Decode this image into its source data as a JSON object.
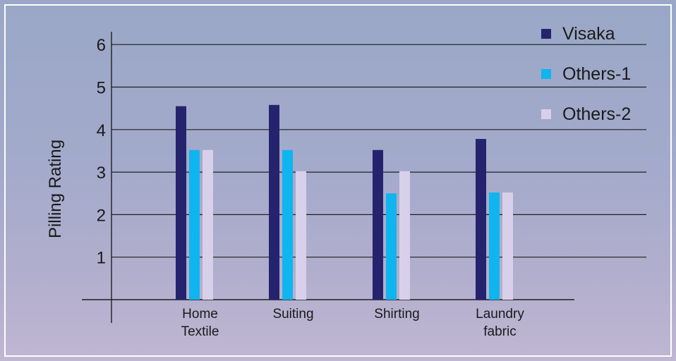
{
  "chart_data": {
    "type": "bar",
    "title": "",
    "xlabel": "",
    "ylabel": "Pilling Rating",
    "ylim": [
      0,
      6
    ],
    "yticks": [
      1,
      2,
      3,
      4,
      5,
      6
    ],
    "grid": true,
    "legend_position": "top-right",
    "categories": [
      [
        "Home",
        "Textile"
      ],
      [
        "Suiting"
      ],
      [
        "Shirting"
      ],
      [
        "Laundry",
        "fabric"
      ]
    ],
    "series": [
      {
        "name": "Visaka",
        "color": "#25236e",
        "values": [
          4.55,
          4.58,
          3.52,
          3.78
        ]
      },
      {
        "name": "Others-1",
        "color": "#0fb5ef",
        "values": [
          3.52,
          3.52,
          2.5,
          2.52
        ]
      },
      {
        "name": "Others-2",
        "color": "#d8d0ea",
        "values": [
          3.52,
          3.02,
          3.02,
          2.52
        ]
      }
    ]
  }
}
